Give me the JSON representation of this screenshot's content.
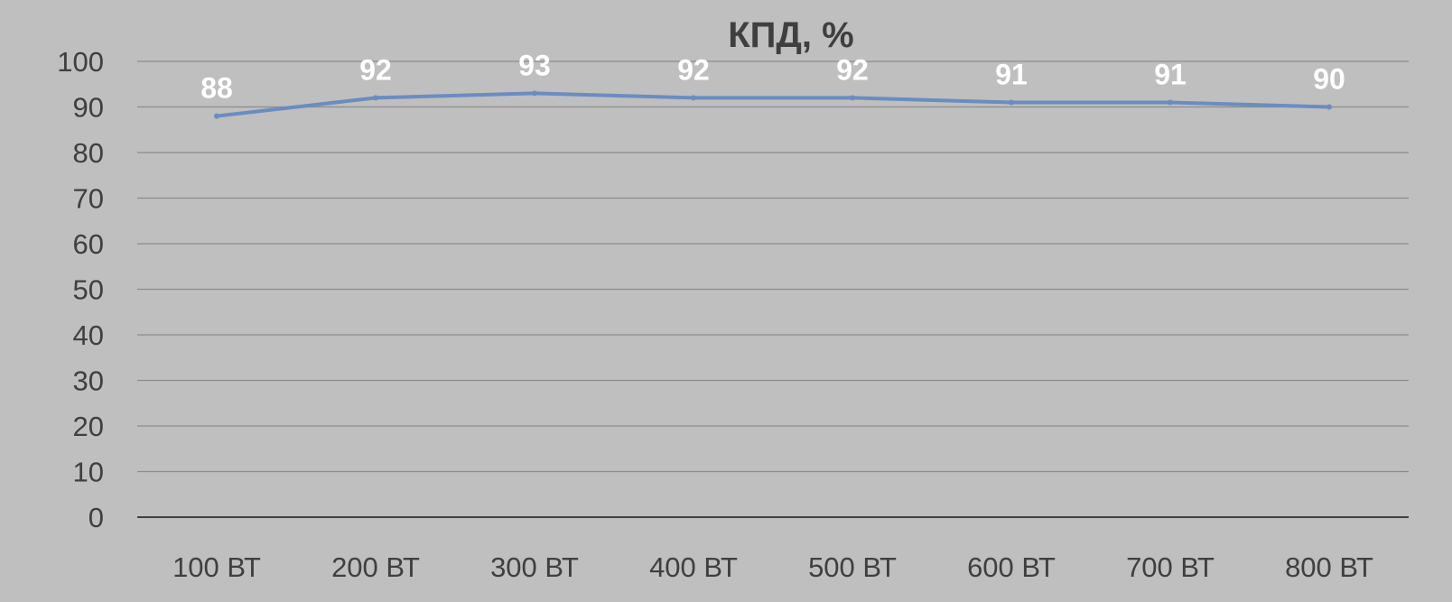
{
  "chart_data": {
    "type": "line",
    "title": "КПД, %",
    "categories": [
      "100 ВТ",
      "200 ВТ",
      "300 ВТ",
      "400 ВТ",
      "500 ВТ",
      "600 ВТ",
      "700 ВТ",
      "800 ВТ"
    ],
    "series": [
      {
        "values": [
          88,
          92,
          93,
          92,
          92,
          91,
          91,
          90
        ],
        "color": "#6a8dc0"
      }
    ],
    "ylim": [
      0,
      100
    ],
    "yticks": [
      0,
      10,
      20,
      30,
      40,
      50,
      60,
      70,
      80,
      90,
      100
    ],
    "grid": true,
    "data_labels": true,
    "legend": "none",
    "colors": {
      "background": "#bfbfbf",
      "gridline": "#8c8c8c",
      "axis": "#404040",
      "text": "#3f3f3f",
      "data_label": "#ffffff"
    }
  }
}
